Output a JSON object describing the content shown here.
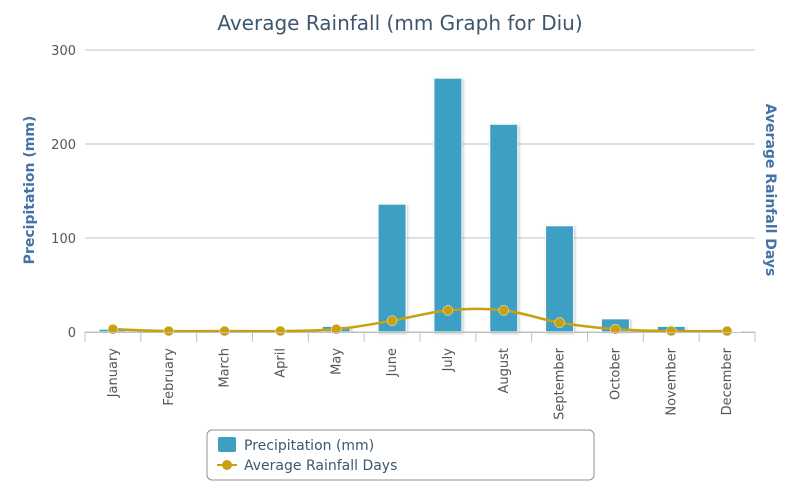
{
  "chart_data": {
    "type": "bar",
    "title": "Average Rainfall (mm Graph for Diu)",
    "categories": [
      "January",
      "February",
      "March",
      "April",
      "May",
      "June",
      "July",
      "August",
      "September",
      "October",
      "November",
      "December"
    ],
    "series": [
      {
        "name": "Precipitation (mm)",
        "type": "bar",
        "axis": "left",
        "color": "#3d9fc3",
        "values": [
          3,
          0.5,
          0.5,
          0.5,
          6,
          136,
          270,
          221,
          113,
          14,
          6,
          0.5
        ]
      },
      {
        "name": "Average Rainfall Days",
        "type": "line",
        "axis": "right",
        "color": "#c9a010",
        "values": [
          0.3,
          0.1,
          0.1,
          0.1,
          0.3,
          1.2,
          2.3,
          2.3,
          1.0,
          0.3,
          0.1,
          0.1
        ]
      }
    ],
    "ylabel": "Precipitation (mm)",
    "y2label": "Average Rainfall Days",
    "ylim": [
      0,
      300
    ],
    "yticks": [
      0,
      100,
      200,
      300
    ],
    "y2lim": [
      0,
      30
    ],
    "grid": true,
    "legend_placement": "bottom-center"
  },
  "colors": {
    "title": "#3e576f",
    "axis_title": "#4572a7",
    "grid": "#c0c0c0",
    "legend_border": "#909090"
  }
}
